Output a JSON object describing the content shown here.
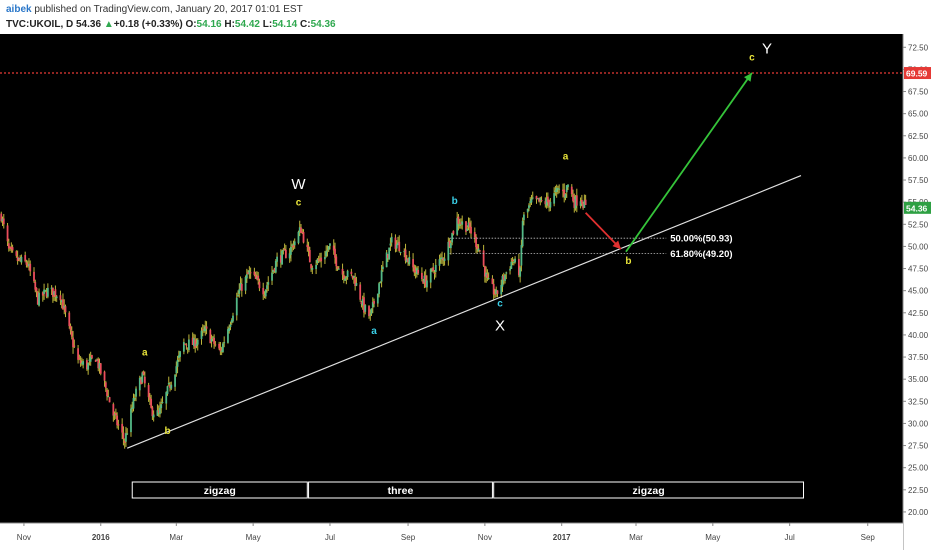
{
  "header": {
    "author": "aibek",
    "published_text": " published on TradingView.com, January 20, 2017 01:01 EST",
    "symbol": "TVC:UKOIL, D",
    "last": "54.36",
    "change_arrow": "▲",
    "change": "+0.18 (+0.33%)",
    "o_label": "O:",
    "o_value": "54.16",
    "h_label": "H:",
    "h_value": "54.42",
    "l_label": "L:",
    "l_value": "54.14",
    "c_label": "C:",
    "c_value": "54.36"
  },
  "chart_data": {
    "type": "candlestick",
    "symbol": "TVC:UKOIL, D",
    "ylim": [
      18.75,
      74.0
    ],
    "x_date_range": [
      "2015-10-13",
      "2017-09-29"
    ],
    "y_ticks": [
      "72.50",
      "70.00",
      "67.50",
      "65.00",
      "62.50",
      "60.00",
      "57.50",
      "55.00",
      "52.50",
      "50.00",
      "47.50",
      "45.00",
      "42.50",
      "40.00",
      "37.50",
      "35.00",
      "32.50",
      "30.00",
      "27.50",
      "25.00",
      "22.50",
      "20.00"
    ],
    "x_ticks": [
      {
        "date": "2015-11-01",
        "label": "Nov",
        "bold": false
      },
      {
        "date": "2016-01-01",
        "label": "2016",
        "bold": true
      },
      {
        "date": "2016-03-01",
        "label": "Mar",
        "bold": false
      },
      {
        "date": "2016-05-01",
        "label": "May",
        "bold": false
      },
      {
        "date": "2016-07-01",
        "label": "Jul",
        "bold": false
      },
      {
        "date": "2016-09-01",
        "label": "Sep",
        "bold": false
      },
      {
        "date": "2016-11-01",
        "label": "Nov",
        "bold": false
      },
      {
        "date": "2017-01-01",
        "label": "2017",
        "bold": true
      },
      {
        "date": "2017-03-01",
        "label": "Mar",
        "bold": false
      },
      {
        "date": "2017-05-01",
        "label": "May",
        "bold": false
      },
      {
        "date": "2017-07-01",
        "label": "Jul",
        "bold": false
      },
      {
        "date": "2017-09-01",
        "label": "Sep",
        "bold": false
      }
    ],
    "price_path": [
      [
        "2015-10-14",
        53.5
      ],
      [
        "2015-10-20",
        49.5
      ],
      [
        "2015-10-26",
        48.5
      ],
      [
        "2015-11-04",
        48.0
      ],
      [
        "2015-11-12",
        44.0
      ],
      [
        "2015-11-20",
        45.0
      ],
      [
        "2015-11-30",
        44.5
      ],
      [
        "2015-12-07",
        40.5
      ],
      [
        "2015-12-14",
        37.0
      ],
      [
        "2015-12-21",
        36.5
      ],
      [
        "2015-12-28",
        37.5
      ],
      [
        "2016-01-05",
        34.0
      ],
      [
        "2016-01-11",
        31.0
      ],
      [
        "2016-01-20",
        28.0
      ],
      [
        "2016-01-28",
        33.0
      ],
      [
        "2016-02-03",
        35.5
      ],
      [
        "2016-02-10",
        31.5
      ],
      [
        "2016-02-16",
        31.0
      ],
      [
        "2016-02-24",
        34.0
      ],
      [
        "2016-03-07",
        39.0
      ],
      [
        "2016-03-15",
        39.0
      ],
      [
        "2016-03-24",
        40.5
      ],
      [
        "2016-04-05",
        38.0
      ],
      [
        "2016-04-20",
        45.0
      ],
      [
        "2016-04-28",
        47.0
      ],
      [
        "2016-05-10",
        45.0
      ],
      [
        "2016-05-20",
        48.5
      ],
      [
        "2016-05-30",
        49.5
      ],
      [
        "2016-06-08",
        52.0
      ],
      [
        "2016-06-16",
        48.0
      ],
      [
        "2016-06-24",
        48.5
      ],
      [
        "2016-07-01",
        50.0
      ],
      [
        "2016-07-10",
        47.0
      ],
      [
        "2016-07-20",
        46.5
      ],
      [
        "2016-07-28",
        43.0
      ],
      [
        "2016-08-02",
        42.0
      ],
      [
        "2016-08-12",
        47.5
      ],
      [
        "2016-08-19",
        50.5
      ],
      [
        "2016-08-26",
        50.0
      ],
      [
        "2016-09-05",
        47.5
      ],
      [
        "2016-09-15",
        46.0
      ],
      [
        "2016-09-22",
        47.5
      ],
      [
        "2016-09-30",
        49.0
      ],
      [
        "2016-10-10",
        53.0
      ],
      [
        "2016-10-20",
        52.0
      ],
      [
        "2016-10-28",
        49.5
      ],
      [
        "2016-11-03",
        46.0
      ],
      [
        "2016-11-10",
        44.5
      ],
      [
        "2016-11-16",
        46.5
      ],
      [
        "2016-11-23",
        48.5
      ],
      [
        "2016-11-29",
        47.0
      ],
      [
        "2016-12-01",
        53.0
      ],
      [
        "2016-12-08",
        55.0
      ],
      [
        "2016-12-15",
        55.0
      ],
      [
        "2016-12-22",
        55.0
      ],
      [
        "2016-12-30",
        56.5
      ],
      [
        "2017-01-03",
        56.0
      ],
      [
        "2017-01-06",
        57.0
      ],
      [
        "2017-01-11",
        55.0
      ],
      [
        "2017-01-16",
        55.5
      ],
      [
        "2017-01-20",
        54.36
      ]
    ],
    "last_price": 54.36,
    "target_level": 69.59,
    "fibonacci": [
      {
        "label": "50.00%(50.93)",
        "value": 50.93,
        "from": "2016-10-04",
        "to": "2017-03-25"
      },
      {
        "label": "61.80%(49.20)",
        "value": 49.2,
        "from": "2016-10-04",
        "to": "2017-03-25"
      }
    ],
    "trendline": {
      "from": [
        "2016-01-22",
        27.2
      ],
      "to": [
        "2017-07-10",
        58.0
      ]
    },
    "arrows": [
      {
        "color": "#e03030",
        "from": [
          "2017-01-20",
          53.8
        ],
        "to": [
          "2017-02-17",
          49.7
        ]
      },
      {
        "color": "#35c43a",
        "from": [
          "2017-02-21",
          49.4
        ],
        "to": [
          "2017-06-01",
          69.6
        ]
      }
    ],
    "wave_labels": [
      {
        "text": "a",
        "date": "2016-02-05",
        "value": 37.7,
        "color": "#e8e43a",
        "size": "small"
      },
      {
        "text": "b",
        "date": "2016-02-23",
        "value": 28.8,
        "color": "#e8e43a",
        "size": "small"
      },
      {
        "text": "W",
        "date": "2016-06-06",
        "value": 56.5,
        "color": "#ffffff",
        "size": "large"
      },
      {
        "text": "c",
        "date": "2016-06-06",
        "value": 54.6,
        "color": "#e8e43a",
        "size": "small"
      },
      {
        "text": "a",
        "date": "2016-08-05",
        "value": 40.1,
        "color": "#3ad0e8",
        "size": "small"
      },
      {
        "text": "b",
        "date": "2016-10-08",
        "value": 54.8,
        "color": "#3ad0e8",
        "size": "small"
      },
      {
        "text": "c",
        "date": "2016-11-13",
        "value": 43.2,
        "color": "#3ad0e8",
        "size": "small"
      },
      {
        "text": "X",
        "date": "2016-11-13",
        "value": 40.5,
        "color": "#ffffff",
        "size": "large"
      },
      {
        "text": "a",
        "date": "2017-01-04",
        "value": 59.8,
        "color": "#e8e43a",
        "size": "small"
      },
      {
        "text": "b",
        "date": "2017-02-23",
        "value": 48.0,
        "color": "#e8e43a",
        "size": "small"
      },
      {
        "text": "c",
        "date": "2017-06-01",
        "value": 71.0,
        "color": "#e8e43a",
        "size": "small"
      },
      {
        "text": "Y",
        "date": "2017-06-13",
        "value": 71.8,
        "color": "#ffffff",
        "size": "large"
      }
    ],
    "pattern_boxes": [
      {
        "label": "zigzag",
        "from": "2016-01-26",
        "to": "2016-06-13"
      },
      {
        "label": "three",
        "from": "2016-06-14",
        "to": "2016-11-07"
      },
      {
        "label": "zigzag",
        "from": "2016-11-08",
        "to": "2017-07-12"
      }
    ],
    "price_tags": [
      {
        "label": "69.59",
        "value": 69.59,
        "color": "#e53935"
      },
      {
        "label": "54.36",
        "value": 54.36,
        "color": "#2ea043"
      }
    ]
  }
}
